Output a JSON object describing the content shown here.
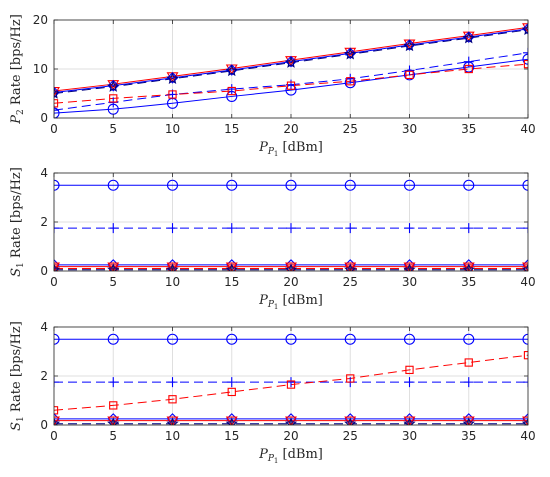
{
  "chart_data": [
    {
      "type": "line",
      "ylabel_main": "P",
      "ylabel_sub": "2",
      "ylabel_rest": " Rate [bps/Hz]",
      "xlabel_main": "P",
      "xlabel_sub1": "P",
      "xlabel_sub2": "1",
      "xlabel_rest": " [dBm]",
      "xlim": [
        0,
        40
      ],
      "ylim": [
        0,
        20
      ],
      "xticks": [
        0,
        5,
        10,
        15,
        20,
        25,
        30,
        35,
        40
      ],
      "yticks": [
        0,
        10,
        20
      ],
      "grid": true,
      "x": [
        0,
        5,
        10,
        15,
        20,
        25,
        30,
        35,
        40
      ],
      "series": [
        {
          "color": "#0000ff",
          "line": "solid",
          "marker": "circle",
          "values": [
            1.0,
            1.8,
            3.0,
            4.4,
            5.7,
            7.2,
            8.8,
            10.4,
            12.0
          ]
        },
        {
          "color": "#0000ff",
          "line": "dashed",
          "marker": "plus",
          "values": [
            1.6,
            3.2,
            4.8,
            5.9,
            6.8,
            8.0,
            9.7,
            11.5,
            13.3
          ]
        },
        {
          "color": "#ff0000",
          "line": "dashed",
          "marker": "square",
          "values": [
            3.0,
            4.0,
            4.8,
            5.5,
            6.6,
            7.5,
            8.8,
            10.0,
            11.0
          ]
        },
        {
          "color": "#ff0000",
          "line": "solid",
          "marker": "triangle-down",
          "values": [
            5.5,
            6.9,
            8.5,
            10.1,
            11.8,
            13.5,
            15.2,
            16.8,
            18.5
          ]
        },
        {
          "color": "#0000ff",
          "line": "solid",
          "marker": "diamond",
          "values": [
            5.2,
            6.6,
            8.2,
            9.8,
            11.5,
            13.2,
            14.9,
            16.5,
            18.2
          ]
        },
        {
          "color": "#000080",
          "line": "dashed",
          "marker": "star",
          "values": [
            5.0,
            6.4,
            8.0,
            9.6,
            11.3,
            13.0,
            14.7,
            16.3,
            18.0
          ]
        }
      ]
    },
    {
      "type": "line",
      "ylabel_main": "S",
      "ylabel_sub": "1",
      "ylabel_rest": " Rate [bps/Hz]",
      "xlabel_main": "P",
      "xlabel_sub1": "P",
      "xlabel_sub2": "1",
      "xlabel_rest": " [dBm]",
      "xlim": [
        0,
        40
      ],
      "ylim": [
        0,
        4
      ],
      "xticks": [
        0,
        5,
        10,
        15,
        20,
        25,
        30,
        35,
        40
      ],
      "yticks": [
        0,
        2,
        4
      ],
      "grid": true,
      "x": [
        0,
        5,
        10,
        15,
        20,
        25,
        30,
        35,
        40
      ],
      "series": [
        {
          "color": "#0000ff",
          "line": "solid",
          "marker": "circle",
          "values": [
            3.5,
            3.5,
            3.5,
            3.5,
            3.5,
            3.5,
            3.5,
            3.5,
            3.5
          ]
        },
        {
          "color": "#0000ff",
          "line": "dashed",
          "marker": "plus",
          "values": [
            1.75,
            1.75,
            1.75,
            1.75,
            1.75,
            1.75,
            1.75,
            1.75,
            1.75
          ]
        },
        {
          "color": "#0000ff",
          "line": "solid",
          "marker": "diamond",
          "values": [
            0.25,
            0.25,
            0.25,
            0.25,
            0.25,
            0.25,
            0.25,
            0.25,
            0.25
          ]
        },
        {
          "color": "#ff0000",
          "line": "solid",
          "marker": "triangle-down",
          "values": [
            0.18,
            0.18,
            0.18,
            0.18,
            0.18,
            0.18,
            0.18,
            0.18,
            0.18
          ]
        },
        {
          "color": "#ff0000",
          "line": "dashed",
          "marker": "square",
          "values": [
            0.1,
            0.1,
            0.1,
            0.1,
            0.1,
            0.1,
            0.1,
            0.1,
            0.1
          ]
        },
        {
          "color": "#000080",
          "line": "dashed",
          "marker": "star",
          "values": [
            0.05,
            0.05,
            0.05,
            0.05,
            0.05,
            0.05,
            0.05,
            0.05,
            0.05
          ]
        }
      ]
    },
    {
      "type": "line",
      "ylabel_main": "S",
      "ylabel_sub": "1",
      "ylabel_rest": " Rate [bps/Hz]",
      "xlabel_main": "P",
      "xlabel_sub1": "P",
      "xlabel_sub2": "1",
      "xlabel_rest": " [dBm]",
      "xlim": [
        0,
        40
      ],
      "ylim": [
        0,
        4
      ],
      "xticks": [
        0,
        5,
        10,
        15,
        20,
        25,
        30,
        35,
        40
      ],
      "yticks": [
        0,
        2,
        4
      ],
      "grid": true,
      "x": [
        0,
        5,
        10,
        15,
        20,
        25,
        30,
        35,
        40
      ],
      "series": [
        {
          "color": "#0000ff",
          "line": "solid",
          "marker": "circle",
          "values": [
            3.5,
            3.5,
            3.5,
            3.5,
            3.5,
            3.5,
            3.5,
            3.5,
            3.5
          ]
        },
        {
          "color": "#0000ff",
          "line": "dashed",
          "marker": "plus",
          "values": [
            1.75,
            1.75,
            1.75,
            1.75,
            1.75,
            1.75,
            1.75,
            1.75,
            1.75
          ]
        },
        {
          "color": "#ff0000",
          "line": "dashed",
          "marker": "square",
          "values": [
            0.6,
            0.8,
            1.05,
            1.35,
            1.65,
            1.9,
            2.25,
            2.55,
            2.85
          ]
        },
        {
          "color": "#0000ff",
          "line": "solid",
          "marker": "diamond",
          "values": [
            0.25,
            0.25,
            0.25,
            0.25,
            0.25,
            0.25,
            0.25,
            0.25,
            0.25
          ]
        },
        {
          "color": "#ff0000",
          "line": "solid",
          "marker": "triangle-down",
          "values": [
            0.18,
            0.18,
            0.18,
            0.18,
            0.18,
            0.18,
            0.18,
            0.18,
            0.18
          ]
        },
        {
          "color": "#000080",
          "line": "dashed",
          "marker": "star",
          "values": [
            0.05,
            0.05,
            0.05,
            0.05,
            0.05,
            0.05,
            0.05,
            0.05,
            0.05
          ]
        }
      ]
    }
  ]
}
